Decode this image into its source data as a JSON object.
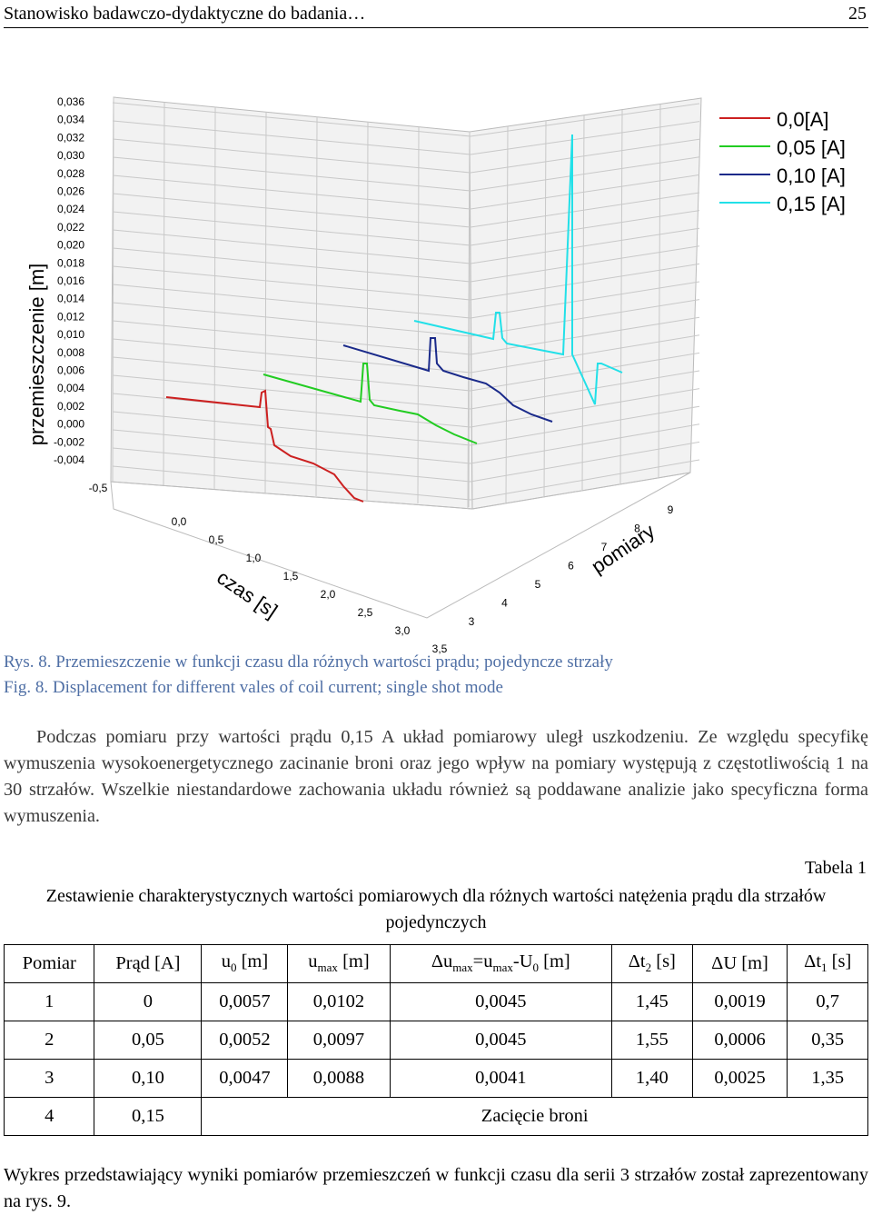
{
  "header": {
    "title": "Stanowisko badawczo-dydaktyczne do badania…",
    "page": "25"
  },
  "chart_data": {
    "type": "line",
    "subtype": "3d-waterfall",
    "ylabel": "przemieszczenie [m]",
    "xlabel": "czas [s]",
    "zlabel": "pomiary",
    "y_ticks": [
      "0,036",
      "0,034",
      "0,032",
      "0,030",
      "0,028",
      "0,026",
      "0,024",
      "0,022",
      "0,020",
      "0,018",
      "0,016",
      "0,014",
      "0,012",
      "0,010",
      "0,008",
      "0,006",
      "0,004",
      "0,002",
      "0,000",
      "-0,002",
      "-0,004"
    ],
    "x_ticks": [
      "-0,5",
      "0,0",
      "0,5",
      "1,0",
      "1,5",
      "2,0",
      "2,5",
      "3,0",
      "3,5"
    ],
    "z_ticks": [
      "3",
      "4",
      "5",
      "6",
      "7",
      "8",
      "9"
    ],
    "legend_position": "top-right",
    "series": [
      {
        "name": "0,0[A]",
        "color": "#cc2020"
      },
      {
        "name": "0,05 [A]",
        "color": "#22cc22"
      },
      {
        "name": "0,10 [A]",
        "color": "#1a2a8a"
      },
      {
        "name": "0,15 [A]",
        "color": "#22e0e8"
      }
    ]
  },
  "caption": {
    "pl": "Rys. 8. Przemieszczenie w funkcji czasu dla różnych wartości prądu; pojedyncze strzały",
    "en": "Fig. 8. Displacement for different vales of coil current; single shot mode"
  },
  "paragraph1": "Podczas pomiaru przy wartości prądu 0,15 A układ pomiarowy uległ uszkodzeniu. Ze względu specyfikę wymuszenia wysokoenergetycznego zacinanie broni oraz jego wpływ na pomiary występują z częstotliwością 1 na 30 strzałów. Wszelkie niestandardowe zachowania układu również są poddawane analizie jako specyficzna forma wymuszenia.",
  "table": {
    "number": "Tabela 1",
    "title": "Zestawienie charakterystycznych wartości pomiarowych dla różnych wartości natężenia prądu dla strzałów pojedynczych",
    "headers": [
      "Pomiar",
      "Prąd [A]",
      "u0 [m]",
      "umax [m]",
      "Δumax=umax-U0 [m]",
      "Δt2 [s]",
      "ΔU [m]",
      "Δt1 [s]"
    ],
    "rows": [
      [
        "1",
        "0",
        "0,0057",
        "0,0102",
        "0,0045",
        "1,45",
        "0,0019",
        "0,7"
      ],
      [
        "2",
        "0,05",
        "0,0052",
        "0,0097",
        "0,0045",
        "1,55",
        "0,0006",
        "0,35"
      ],
      [
        "3",
        "0,10",
        "0,0047",
        "0,0088",
        "0,0041",
        "1,40",
        "0,0025",
        "1,35"
      ]
    ],
    "last_row": {
      "pomiar": "4",
      "prad": "0,15",
      "note": "Zacięcie broni"
    }
  },
  "paragraph2": "Wykres przedstawiający wyniki pomiarów przemieszczeń w funkcji czasu dla serii 3 strzałów został zaprezentowany na rys. 9."
}
